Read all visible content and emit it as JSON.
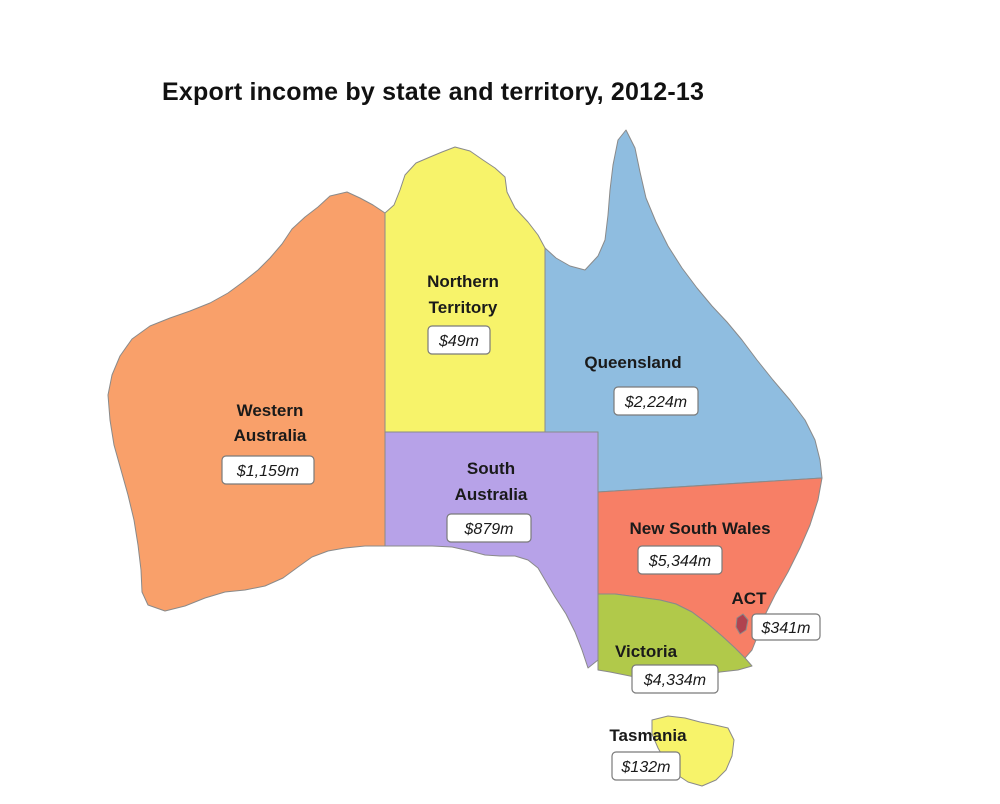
{
  "title": "Export income by state and territory, 2012-13",
  "regions": {
    "wa": {
      "name_lines": [
        "Western",
        "Australia"
      ],
      "value": "$1,159m",
      "color": "#f9a06a"
    },
    "nt": {
      "name_lines": [
        "Northern",
        "Territory"
      ],
      "value": "$49m",
      "color": "#f7f36a"
    },
    "qld": {
      "name_lines": [
        "Queensland"
      ],
      "value": "$2,224m",
      "color": "#8fbde0"
    },
    "sa": {
      "name_lines": [
        "South",
        "Australia"
      ],
      "value": "$879m",
      "color": "#b7a2e8"
    },
    "nsw": {
      "name_lines": [
        "New South Wales"
      ],
      "value": "$5,344m",
      "color": "#f77f66"
    },
    "act": {
      "name_lines": [
        "ACT"
      ],
      "value": "$341m",
      "color": "#b0424f"
    },
    "vic": {
      "name_lines": [
        "Victoria"
      ],
      "value": "$4,334m",
      "color": "#b1c94a"
    },
    "tas": {
      "name_lines": [
        "Tasmania"
      ],
      "value": "$132m",
      "color": "#f7f36a"
    }
  }
}
